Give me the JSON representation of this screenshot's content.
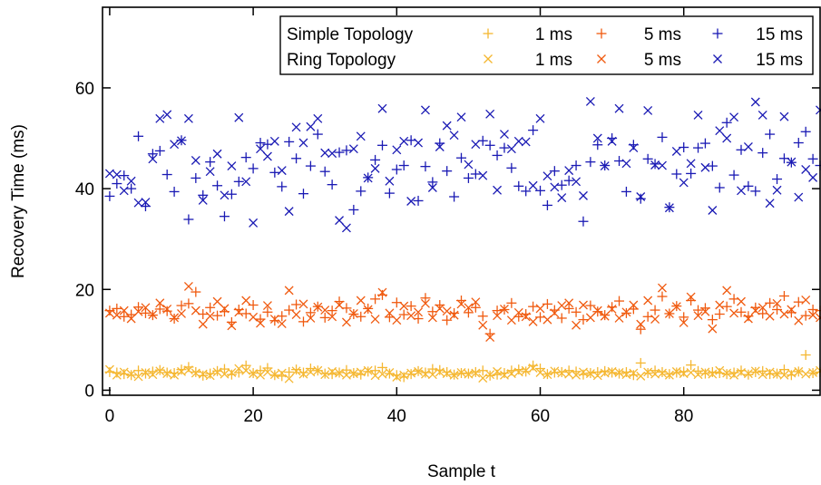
{
  "chart_data": {
    "type": "scatter",
    "title": "",
    "xlabel": "Sample t",
    "ylabel": "Recovery Time (ms)",
    "xlim": [
      -1,
      99
    ],
    "ylim": [
      -1,
      76
    ],
    "xticks": [
      0,
      20,
      40,
      60,
      80
    ],
    "yticks": [
      0,
      20,
      40,
      60
    ],
    "x_tick_labels": [
      "0",
      "20",
      "40",
      "60",
      "80"
    ],
    "y_tick_labels": [
      "0",
      "20",
      "40",
      "60"
    ],
    "grid": false,
    "legend_placement": "top-right",
    "legend": {
      "rows": [
        {
          "label": "Simple Topology",
          "marker": "plus"
        },
        {
          "label": "Ring Topology",
          "marker": "cross"
        }
      ],
      "columns": [
        {
          "label": "1 ms",
          "color": "#f5b731"
        },
        {
          "label": "5 ms",
          "color": "#f05a0f"
        },
        {
          "label": "15 ms",
          "color": "#1a1ab4"
        }
      ]
    },
    "series": [
      {
        "topology": "Simple Topology",
        "delay": "1 ms",
        "marker": "plus",
        "color": "#f5b731",
        "x": [
          0,
          1,
          2,
          3,
          4,
          5,
          6,
          7,
          8,
          9,
          10,
          11,
          12,
          13,
          14,
          15,
          16,
          17,
          18,
          19,
          20,
          21,
          22,
          23,
          24,
          25,
          26,
          27,
          28,
          29,
          30,
          31,
          32,
          33,
          34,
          35,
          36,
          37,
          38,
          39,
          40,
          41,
          42,
          43,
          44,
          45,
          46,
          47,
          48,
          49,
          50,
          51,
          52,
          53,
          54,
          55,
          56,
          57,
          58,
          59,
          60,
          61,
          62,
          63,
          64,
          65,
          66,
          67,
          68,
          69,
          70,
          71,
          72,
          73,
          74,
          75,
          76,
          77,
          78,
          79,
          80,
          81,
          82,
          83,
          84,
          85,
          86,
          87,
          88,
          89,
          90,
          91,
          92,
          93,
          94,
          95,
          96,
          97,
          98,
          99
        ],
        "y": [
          3.6,
          3.5,
          3.2,
          3.0,
          3.9,
          3.3,
          3.7,
          4.0,
          3.5,
          3.4,
          4.1,
          4.6,
          3.6,
          2.9,
          3.3,
          3.8,
          4.2,
          3.1,
          3.5,
          4.9,
          3.4,
          3.9,
          4.4,
          3.0,
          2.8,
          3.6,
          4.1,
          3.5,
          4.3,
          3.9,
          3.3,
          3.2,
          3.5,
          4.0,
          3.4,
          3.1,
          3.7,
          3.9,
          4.5,
          3.3,
          3.0,
          2.6,
          3.2,
          3.8,
          3.5,
          4.2,
          4.0,
          3.6,
          3.1,
          3.4,
          3.3,
          3.6,
          3.9,
          2.9,
          3.1,
          3.4,
          3.9,
          4.1,
          3.7,
          4.9,
          4.3,
          3.2,
          3.5,
          3.6,
          3.9,
          3.7,
          3.1,
          3.4,
          3.6,
          3.8,
          3.5,
          3.3,
          3.6,
          3.0,
          5.4,
          3.4,
          3.9,
          3.6,
          3.2,
          3.5,
          3.7,
          5.0,
          3.8,
          3.3,
          3.6,
          3.4,
          3.2,
          3.5,
          3.9,
          3.1,
          3.6,
          3.8,
          3.2,
          3.3,
          4.1,
          3.0,
          3.7,
          7.0,
          3.4,
          3.6
        ]
      },
      {
        "topology": "Ring Topology",
        "delay": "1 ms",
        "marker": "cross",
        "color": "#f5b731",
        "x": [
          0,
          1,
          2,
          3,
          4,
          5,
          6,
          7,
          8,
          9,
          10,
          11,
          12,
          13,
          14,
          15,
          16,
          17,
          18,
          19,
          20,
          21,
          22,
          23,
          24,
          25,
          26,
          27,
          28,
          29,
          30,
          31,
          32,
          33,
          34,
          35,
          36,
          37,
          38,
          39,
          40,
          41,
          42,
          43,
          44,
          45,
          46,
          47,
          48,
          49,
          50,
          51,
          52,
          53,
          54,
          55,
          56,
          57,
          58,
          59,
          60,
          61,
          62,
          63,
          64,
          65,
          66,
          67,
          68,
          69,
          70,
          71,
          72,
          73,
          74,
          75,
          76,
          77,
          78,
          79,
          80,
          81,
          82,
          83,
          84,
          85,
          86,
          87,
          88,
          89,
          90,
          91,
          92,
          93,
          94,
          95,
          96,
          97,
          98,
          99
        ],
        "y": [
          4.1,
          3.0,
          3.6,
          3.2,
          2.7,
          3.5,
          3.1,
          3.8,
          3.3,
          3.0,
          3.7,
          4.0,
          3.4,
          3.2,
          2.9,
          3.6,
          3.2,
          3.5,
          4.3,
          3.9,
          3.3,
          3.0,
          3.6,
          3.1,
          3.4,
          2.3,
          3.8,
          3.2,
          3.6,
          3.9,
          3.1,
          3.7,
          3.4,
          3.0,
          3.3,
          3.6,
          3.9,
          2.9,
          3.2,
          3.5,
          2.6,
          3.0,
          3.4,
          3.7,
          3.2,
          3.1,
          3.6,
          3.3,
          3.0,
          3.5,
          3.2,
          3.4,
          2.4,
          3.1,
          3.7,
          3.0,
          3.3,
          3.6,
          3.9,
          4.4,
          3.5,
          3.1,
          3.8,
          3.4,
          3.2,
          3.0,
          3.6,
          3.3,
          2.9,
          3.4,
          3.7,
          3.5,
          3.1,
          3.4,
          2.8,
          3.6,
          3.2,
          3.4,
          3.0,
          3.7,
          3.3,
          3.5,
          3.1,
          3.6,
          3.2,
          3.9,
          3.4,
          3.0,
          3.5,
          3.3,
          3.8,
          3.1,
          3.6,
          3.2,
          3.0,
          3.4,
          3.7,
          3.2,
          3.5,
          3.9
        ]
      },
      {
        "topology": "Simple Topology",
        "delay": "5 ms",
        "marker": "plus",
        "color": "#f05a0f",
        "x": [
          0,
          1,
          2,
          3,
          4,
          5,
          6,
          7,
          8,
          9,
          10,
          11,
          12,
          13,
          14,
          15,
          16,
          17,
          18,
          19,
          20,
          21,
          22,
          23,
          24,
          25,
          26,
          27,
          28,
          29,
          30,
          31,
          32,
          33,
          34,
          35,
          36,
          37,
          38,
          39,
          40,
          41,
          42,
          43,
          44,
          45,
          46,
          47,
          48,
          49,
          50,
          51,
          52,
          53,
          54,
          55,
          56,
          57,
          58,
          59,
          60,
          61,
          62,
          63,
          64,
          65,
          66,
          67,
          68,
          69,
          70,
          71,
          72,
          73,
          74,
          75,
          76,
          77,
          78,
          79,
          80,
          81,
          82,
          83,
          84,
          85,
          86,
          87,
          88,
          89,
          90,
          91,
          92,
          93,
          94,
          95,
          96,
          97,
          98,
          99
        ],
        "y": [
          15.8,
          16.2,
          14.6,
          15.0,
          16.5,
          15.3,
          14.9,
          16.1,
          15.7,
          14.2,
          16.8,
          17.2,
          19.5,
          15.1,
          16.4,
          14.8,
          15.6,
          13.5,
          16.0,
          15.2,
          16.9,
          14.1,
          15.5,
          13.8,
          14.7,
          15.9,
          17.0,
          13.6,
          15.4,
          16.6,
          14.4,
          15.8,
          17.6,
          16.3,
          15.1,
          14.6,
          16.2,
          18.1,
          18.9,
          14.5,
          17.4,
          15.0,
          16.7,
          14.2,
          18.3,
          15.6,
          16.9,
          13.9,
          15.3,
          17.8,
          15.4,
          16.4,
          14.7,
          11.2,
          15.8,
          16.0,
          17.3,
          14.6,
          15.1,
          16.6,
          14.5,
          17.1,
          15.9,
          14.3,
          16.2,
          15.5,
          14.0,
          16.8,
          15.6,
          14.9,
          16.5,
          17.7,
          15.3,
          16.1,
          12.1,
          14.6,
          15.9,
          18.6,
          15.2,
          16.7,
          14.5,
          17.8,
          15.9,
          16.3,
          14.0,
          15.1,
          16.6,
          18.1,
          15.5,
          14.7,
          16.4,
          15.2,
          17.3,
          16.0,
          18.7,
          15.4,
          17.5,
          14.8,
          16.0,
          15.8
        ]
      },
      {
        "topology": "Ring Topology",
        "delay": "5 ms",
        "marker": "cross",
        "color": "#f05a0f",
        "x": [
          0,
          1,
          2,
          3,
          4,
          5,
          6,
          7,
          8,
          9,
          10,
          11,
          12,
          13,
          14,
          15,
          16,
          17,
          18,
          19,
          20,
          21,
          22,
          23,
          24,
          25,
          26,
          27,
          28,
          29,
          30,
          31,
          32,
          33,
          34,
          35,
          36,
          37,
          38,
          39,
          40,
          41,
          42,
          43,
          44,
          45,
          46,
          47,
          48,
          49,
          50,
          51,
          52,
          53,
          54,
          55,
          56,
          57,
          58,
          59,
          60,
          61,
          62,
          63,
          64,
          65,
          66,
          67,
          68,
          69,
          70,
          71,
          72,
          73,
          74,
          75,
          76,
          77,
          78,
          79,
          80,
          81,
          82,
          83,
          84,
          85,
          86,
          87,
          88,
          89,
          90,
          91,
          92,
          93,
          94,
          95,
          96,
          97,
          98,
          99
        ],
        "y": [
          15.3,
          14.9,
          15.8,
          14.2,
          15.6,
          16.4,
          15.0,
          17.3,
          16.1,
          14.4,
          15.2,
          20.6,
          15.8,
          13.1,
          14.7,
          17.6,
          16.2,
          12.8,
          15.5,
          17.8,
          14.5,
          13.3,
          16.8,
          14.1,
          13.2,
          19.8,
          15.0,
          17.1,
          14.3,
          16.5,
          15.9,
          14.6,
          16.9,
          13.5,
          15.2,
          17.8,
          16.0,
          14.1,
          19.4,
          15.3,
          13.9,
          16.7,
          14.8,
          15.5,
          17.2,
          14.4,
          16.2,
          15.7,
          14.9,
          17.1,
          16.4,
          17.5,
          12.9,
          10.5,
          14.8,
          16.1,
          13.9,
          15.4,
          14.6,
          13.6,
          16.2,
          14.0,
          15.3,
          16.8,
          17.3,
          12.9,
          16.9,
          14.4,
          15.8,
          14.7,
          16.1,
          14.3,
          15.5,
          16.9,
          13.1,
          17.8,
          14.1,
          20.3,
          15.2,
          16.6,
          13.4,
          18.5,
          14.8,
          15.6,
          12.2,
          16.9,
          19.8,
          15.3,
          17.6,
          14.2,
          15.8,
          16.4,
          14.7,
          17.2,
          15.1,
          16.0,
          13.8,
          17.9,
          14.9,
          14.4
        ]
      },
      {
        "topology": "Simple Topology",
        "delay": "15 ms",
        "marker": "plus",
        "color": "#1a1ab4",
        "x": [
          0,
          1,
          2,
          3,
          4,
          5,
          6,
          7,
          8,
          9,
          10,
          11,
          12,
          13,
          14,
          15,
          16,
          17,
          18,
          19,
          20,
          21,
          22,
          23,
          24,
          25,
          26,
          27,
          28,
          29,
          30,
          31,
          32,
          33,
          34,
          35,
          36,
          37,
          38,
          39,
          40,
          41,
          42,
          43,
          44,
          45,
          46,
          47,
          48,
          49,
          50,
          51,
          52,
          53,
          54,
          55,
          56,
          57,
          58,
          59,
          60,
          61,
          62,
          63,
          64,
          65,
          66,
          67,
          68,
          69,
          70,
          71,
          72,
          73,
          74,
          75,
          76,
          77,
          78,
          79,
          80,
          81,
          82,
          83,
          84,
          85,
          86,
          87,
          88,
          89,
          90,
          91,
          92,
          93,
          94,
          95,
          96,
          97,
          98,
          99
        ],
        "y": [
          38.5,
          41.0,
          42.6,
          40.0,
          50.4,
          36.5,
          46.9,
          47.5,
          42.8,
          39.4,
          49.6,
          33.9,
          42.1,
          38.7,
          45.3,
          40.6,
          34.5,
          38.9,
          41.4,
          46.2,
          44.0,
          49.1,
          48.8,
          43.2,
          40.4,
          49.3,
          46.0,
          39.0,
          44.5,
          50.8,
          43.4,
          40.8,
          47.2,
          47.6,
          35.8,
          39.5,
          42.2,
          45.7,
          48.6,
          39.1,
          43.8,
          44.6,
          49.6,
          37.6,
          44.4,
          41.3,
          49.0,
          43.5,
          38.4,
          46.1,
          42.1,
          42.9,
          49.5,
          48.6,
          46.6,
          48.1,
          44.1,
          40.5,
          39.5,
          51.6,
          39.6,
          36.7,
          43.5,
          40.7,
          41.6,
          44.6,
          33.5,
          45.3,
          48.7,
          44.6,
          50.0,
          45.5,
          39.4,
          48.7,
          38.0,
          45.9,
          44.9,
          50.2,
          36.3,
          42.9,
          48.2,
          43.0,
          48.1,
          49.0,
          44.5,
          40.2,
          53.1,
          42.7,
          47.7,
          40.5,
          39.5,
          47.1,
          50.8,
          41.9,
          46.0,
          45.2,
          49.1,
          51.3,
          45.9,
          44.6
        ]
      },
      {
        "topology": "Ring Topology",
        "delay": "15 ms",
        "marker": "cross",
        "color": "#1a1ab4",
        "x": [
          0,
          1,
          2,
          3,
          4,
          5,
          6,
          7,
          8,
          9,
          10,
          11,
          12,
          13,
          14,
          15,
          16,
          17,
          18,
          19,
          20,
          21,
          22,
          23,
          24,
          25,
          26,
          27,
          28,
          29,
          30,
          31,
          32,
          33,
          34,
          35,
          36,
          37,
          38,
          39,
          40,
          41,
          42,
          43,
          44,
          45,
          46,
          47,
          48,
          49,
          50,
          51,
          52,
          53,
          54,
          55,
          56,
          57,
          58,
          59,
          60,
          61,
          62,
          63,
          64,
          65,
          66,
          67,
          68,
          69,
          70,
          71,
          72,
          73,
          74,
          75,
          76,
          77,
          78,
          79,
          80,
          81,
          82,
          83,
          84,
          85,
          86,
          87,
          88,
          89,
          90,
          91,
          92,
          93,
          94,
          95,
          96,
          97,
          98,
          99
        ],
        "y": [
          43.0,
          42.8,
          39.6,
          41.5,
          37.2,
          37.3,
          45.9,
          53.9,
          54.7,
          48.8,
          49.5,
          53.9,
          45.6,
          37.7,
          43.4,
          46.9,
          38.7,
          44.5,
          54.1,
          41.4,
          33.2,
          47.9,
          46.4,
          49.4,
          43.6,
          35.5,
          52.2,
          49.1,
          52.3,
          53.9,
          47.1,
          47.0,
          33.7,
          32.2,
          47.9,
          50.4,
          42.1,
          44.0,
          55.9,
          41.5,
          47.7,
          49.4,
          37.5,
          49.1,
          55.6,
          40.2,
          48.3,
          52.5,
          50.6,
          54.2,
          44.8,
          48.8,
          42.6,
          54.8,
          39.7,
          50.8,
          47.9,
          49.4,
          49.3,
          40.6,
          53.9,
          42.5,
          40.3,
          38.2,
          43.6,
          41.4,
          38.6,
          57.3,
          50.0,
          44.5,
          49.4,
          55.9,
          45.0,
          48.1,
          38.4,
          55.5,
          44.7,
          44.6,
          36.2,
          47.4,
          41.2,
          45.0,
          54.6,
          44.2,
          35.7,
          51.5,
          50.0,
          54.2,
          39.6,
          48.3,
          57.2,
          54.6,
          37.1,
          39.7,
          54.3,
          45.3,
          38.3,
          43.8,
          42.2,
          55.6
        ]
      }
    ]
  }
}
